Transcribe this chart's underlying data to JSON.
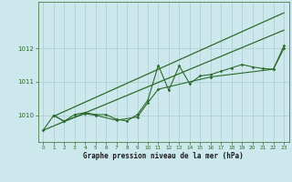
{
  "background_color": "#cce8ec",
  "grid_color": "#aacccc",
  "line_color": "#2d6a2d",
  "title": "Graphe pression niveau de la mer (hPa)",
  "xlim": [
    -0.5,
    23.5
  ],
  "ylim": [
    1009.2,
    1013.4
  ],
  "yticks": [
    1010,
    1011,
    1012
  ],
  "xticks": [
    0,
    1,
    2,
    3,
    4,
    5,
    6,
    7,
    8,
    9,
    10,
    11,
    12,
    13,
    14,
    15,
    16,
    17,
    18,
    19,
    20,
    21,
    22,
    23
  ],
  "series1_x": [
    0,
    1,
    2,
    3,
    4,
    5,
    6,
    7,
    8,
    9,
    10,
    11,
    12,
    13,
    14,
    15,
    16,
    17,
    18,
    19,
    20,
    21,
    22,
    23
  ],
  "series1_y": [
    1009.55,
    1010.0,
    1009.82,
    1010.02,
    1010.08,
    1010.02,
    1010.02,
    1009.88,
    1009.83,
    1010.02,
    1010.45,
    1011.5,
    1010.75,
    1011.48,
    1010.95,
    1011.18,
    1011.22,
    1011.32,
    1011.42,
    1011.52,
    1011.45,
    1011.4,
    1011.38,
    1012.08
  ],
  "series2_x": [
    1,
    2,
    4,
    5,
    7,
    9,
    10,
    11,
    16,
    22,
    23
  ],
  "series2_y": [
    1010.0,
    1009.82,
    1010.05,
    1010.0,
    1009.85,
    1009.95,
    1010.38,
    1010.78,
    1011.15,
    1011.38,
    1012.0
  ],
  "line1_x": [
    0,
    23
  ],
  "line1_y": [
    1009.55,
    1012.55
  ],
  "line2_x": [
    1,
    23
  ],
  "line2_y": [
    1009.97,
    1013.07
  ]
}
